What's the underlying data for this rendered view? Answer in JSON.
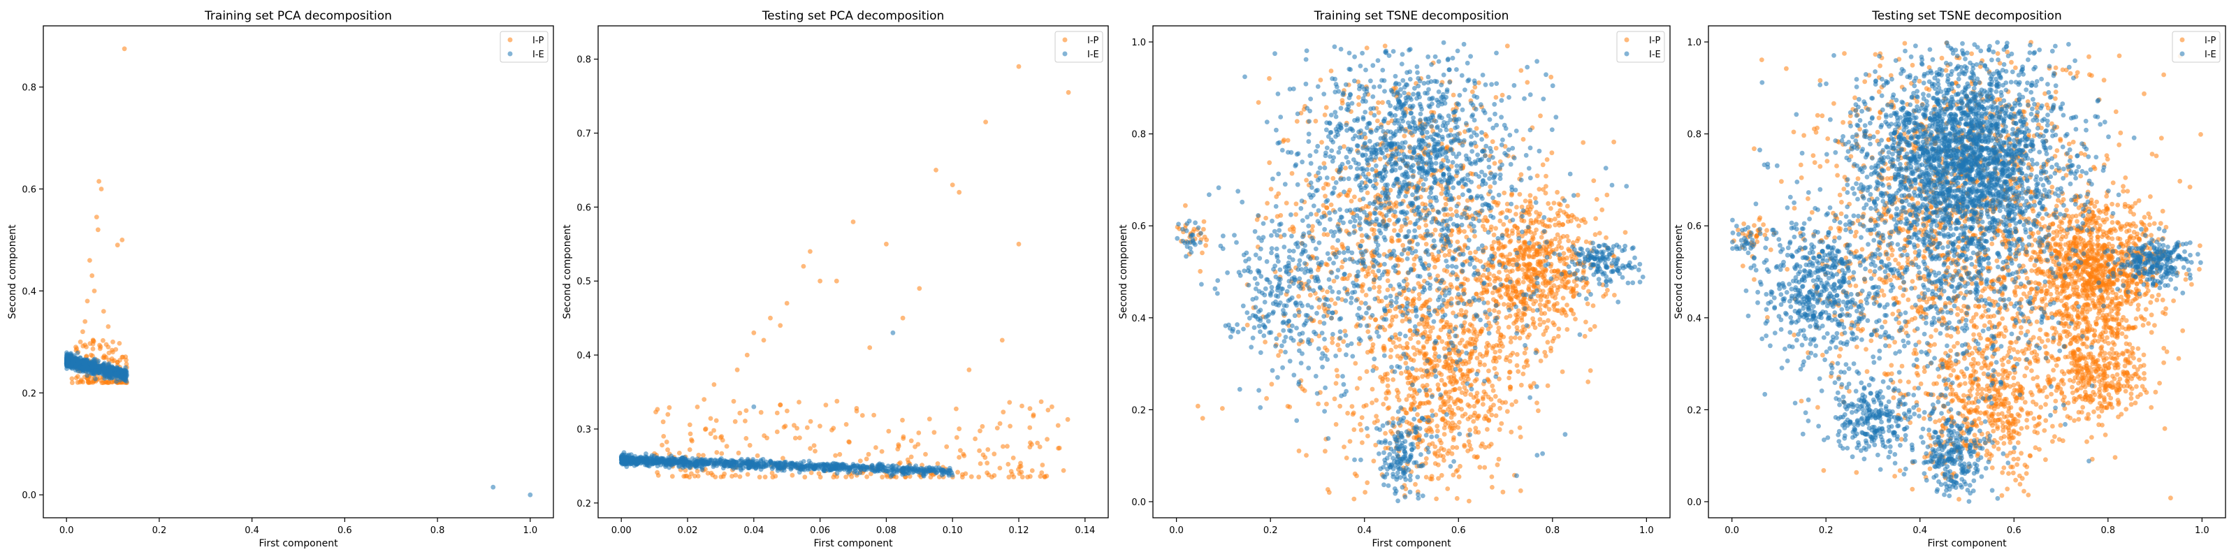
{
  "colors": {
    "ip": "#ff7f0e",
    "ie": "#1f77b4"
  },
  "chart_data": [
    {
      "type": "scatter",
      "title": "Training set PCA decomposition",
      "xlabel": "First component",
      "ylabel": "Second component",
      "xlim": [
        -0.05,
        1.05
      ],
      "ylim": [
        -0.045,
        0.92
      ],
      "xticks": [
        0.0,
        0.2,
        0.4,
        0.6,
        0.8,
        1.0
      ],
      "yticks": [
        0.0,
        0.2,
        0.4,
        0.6,
        0.8
      ],
      "tick_decimals": 1,
      "legend": {
        "location": "top-right",
        "entries": [
          "I-P",
          "I-E"
        ]
      },
      "series": [
        {
          "name": "I-P",
          "color": "#ff7f0e",
          "x": [
            0.125,
            0.07,
            0.075,
            0.065,
            0.068,
            0.11,
            0.12,
            0.05,
            0.055,
            0.06,
            0.045,
            0.08,
            0.09,
            0.1,
            0.04,
            0.035,
            0.03,
            0.12,
            0.13,
            0.11,
            0.1,
            0.09,
            0.085,
            0.025,
            0.02
          ],
          "y": [
            0.875,
            0.615,
            0.6,
            0.545,
            0.52,
            0.49,
            0.5,
            0.46,
            0.43,
            0.4,
            0.38,
            0.36,
            0.33,
            0.3,
            0.34,
            0.32,
            0.3,
            0.27,
            0.25,
            0.26,
            0.28,
            0.29,
            0.27,
            0.28,
            0.29
          ],
          "cloud": {
            "n": 140,
            "x": [
              0.01,
              0.13
            ],
            "y": [
              0.22,
              0.31
            ]
          }
        },
        {
          "name": "I-E",
          "color": "#1f77b4",
          "x": [
            0.92,
            1.0
          ],
          "y": [
            0.015,
            0.0
          ],
          "band": {
            "n": 700,
            "x0": 0.0,
            "x1": 0.13,
            "y_start": 0.262,
            "y_end": 0.235,
            "spread": 0.012
          }
        }
      ]
    },
    {
      "type": "scatter",
      "title": "Testing set PCA decomposition",
      "xlabel": "First component",
      "ylabel": "Second component",
      "xlim": [
        -0.007,
        0.147
      ],
      "ylim": [
        0.18,
        0.845
      ],
      "xticks": [
        0.0,
        0.02,
        0.04,
        0.06,
        0.08,
        0.1,
        0.12,
        0.14
      ],
      "yticks": [
        0.2,
        0.3,
        0.4,
        0.5,
        0.6,
        0.7,
        0.8
      ],
      "tick_decimals": 2,
      "ytick_decimals": 1,
      "legend": {
        "location": "top-right",
        "entries": [
          "I-P",
          "I-E"
        ]
      },
      "series": [
        {
          "name": "I-P",
          "color": "#ff7f0e",
          "x": [
            0.12,
            0.135,
            0.11,
            0.095,
            0.1,
            0.102,
            0.07,
            0.08,
            0.12,
            0.057,
            0.055,
            0.06,
            0.065,
            0.09,
            0.045,
            0.04,
            0.043,
            0.038,
            0.035,
            0.028,
            0.025,
            0.115,
            0.13,
            0.105,
            0.085,
            0.075,
            0.05,
            0.048
          ],
          "y": [
            0.79,
            0.755,
            0.715,
            0.65,
            0.63,
            0.62,
            0.58,
            0.55,
            0.55,
            0.54,
            0.52,
            0.5,
            0.5,
            0.49,
            0.45,
            0.43,
            0.42,
            0.4,
            0.38,
            0.36,
            0.34,
            0.42,
            0.33,
            0.38,
            0.45,
            0.41,
            0.47,
            0.44
          ],
          "cloud": {
            "n": 280,
            "x": [
              0.01,
              0.135
            ],
            "y": [
              0.235,
              0.34
            ]
          }
        },
        {
          "name": "I-E",
          "color": "#1f77b4",
          "x": [
            0.082,
            0.04
          ],
          "y": [
            0.43,
            0.33
          ],
          "band": {
            "n": 1000,
            "x0": 0.0,
            "x1": 0.1,
            "y_start": 0.258,
            "y_end": 0.243,
            "spread": 0.006
          }
        }
      ]
    },
    {
      "type": "scatter",
      "title": "Training set TSNE decomposition",
      "xlabel": "First component",
      "ylabel": "Second component",
      "xlim": [
        -0.05,
        1.05
      ],
      "ylim": [
        -0.035,
        1.035
      ],
      "xticks": [
        0.0,
        0.2,
        0.4,
        0.6,
        0.8,
        1.0
      ],
      "yticks": [
        0.0,
        0.2,
        0.4,
        0.6,
        0.8,
        1.0
      ],
      "tick_decimals": 1,
      "legend": {
        "location": "top-right",
        "entries": [
          "I-P",
          "I-E"
        ]
      },
      "series": [
        {
          "name": "I-P",
          "color": "#ff7f0e",
          "blobs": [
            {
              "n": 1000,
              "cx": 0.5,
              "cy": 0.55,
              "rx": 0.3,
              "ry": 0.4
            },
            {
              "n": 600,
              "cx": 0.76,
              "cy": 0.5,
              "rx": 0.14,
              "ry": 0.14
            },
            {
              "n": 300,
              "cx": 0.55,
              "cy": 0.18,
              "rx": 0.14,
              "ry": 0.15
            },
            {
              "n": 250,
              "cx": 0.6,
              "cy": 0.32,
              "rx": 0.15,
              "ry": 0.12
            },
            {
              "n": 25,
              "cx": 0.035,
              "cy": 0.575,
              "rx": 0.03,
              "ry": 0.04
            }
          ]
        },
        {
          "name": "I-E",
          "color": "#1f77b4",
          "blobs": [
            {
              "n": 1000,
              "cx": 0.5,
              "cy": 0.62,
              "rx": 0.28,
              "ry": 0.38
            },
            {
              "n": 500,
              "cx": 0.5,
              "cy": 0.78,
              "rx": 0.18,
              "ry": 0.18
            },
            {
              "n": 250,
              "cx": 0.22,
              "cy": 0.47,
              "rx": 0.12,
              "ry": 0.15
            },
            {
              "n": 150,
              "cx": 0.9,
              "cy": 0.52,
              "rx": 0.08,
              "ry": 0.05
            },
            {
              "n": 150,
              "cx": 0.48,
              "cy": 0.1,
              "rx": 0.06,
              "ry": 0.1
            },
            {
              "n": 25,
              "cx": 0.03,
              "cy": 0.57,
              "rx": 0.03,
              "ry": 0.04
            }
          ]
        }
      ]
    },
    {
      "type": "scatter",
      "title": "Testing set TSNE decomposition",
      "xlabel": "First component",
      "ylabel": "Second component",
      "xlim": [
        -0.05,
        1.05
      ],
      "ylim": [
        -0.035,
        1.035
      ],
      "xticks": [
        0.0,
        0.2,
        0.4,
        0.6,
        0.8,
        1.0
      ],
      "yticks": [
        0.0,
        0.2,
        0.4,
        0.6,
        0.8,
        1.0
      ],
      "tick_decimals": 1,
      "legend": {
        "location": "top-right",
        "entries": [
          "I-P",
          "I-E"
        ]
      },
      "series": [
        {
          "name": "I-P",
          "color": "#ff7f0e",
          "blobs": [
            {
              "n": 1500,
              "cx": 0.5,
              "cy": 0.58,
              "rx": 0.32,
              "ry": 0.4
            },
            {
              "n": 1000,
              "cx": 0.78,
              "cy": 0.5,
              "rx": 0.14,
              "ry": 0.15
            },
            {
              "n": 450,
              "cx": 0.55,
              "cy": 0.2,
              "rx": 0.14,
              "ry": 0.15
            },
            {
              "n": 350,
              "cx": 0.78,
              "cy": 0.28,
              "rx": 0.1,
              "ry": 0.1
            },
            {
              "n": 30,
              "cx": 0.04,
              "cy": 0.58,
              "rx": 0.035,
              "ry": 0.04
            }
          ]
        },
        {
          "name": "I-E",
          "color": "#1f77b4",
          "blobs": [
            {
              "n": 2200,
              "cx": 0.5,
              "cy": 0.75,
              "rx": 0.2,
              "ry": 0.22
            },
            {
              "n": 900,
              "cx": 0.45,
              "cy": 0.55,
              "rx": 0.3,
              "ry": 0.35
            },
            {
              "n": 450,
              "cx": 0.18,
              "cy": 0.45,
              "rx": 0.12,
              "ry": 0.15
            },
            {
              "n": 250,
              "cx": 0.9,
              "cy": 0.52,
              "rx": 0.08,
              "ry": 0.05
            },
            {
              "n": 250,
              "cx": 0.47,
              "cy": 0.1,
              "rx": 0.07,
              "ry": 0.1
            },
            {
              "n": 250,
              "cx": 0.3,
              "cy": 0.18,
              "rx": 0.1,
              "ry": 0.08
            },
            {
              "n": 30,
              "cx": 0.03,
              "cy": 0.57,
              "rx": 0.035,
              "ry": 0.04
            }
          ]
        }
      ]
    }
  ]
}
